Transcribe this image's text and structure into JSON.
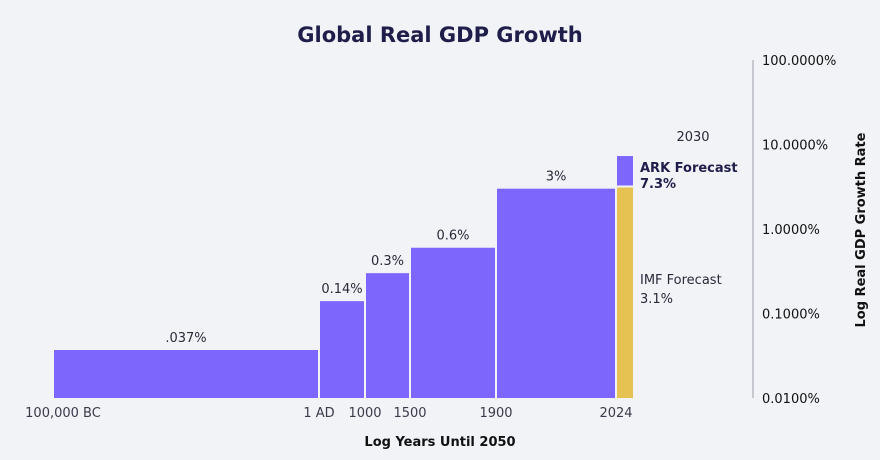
{
  "chart_data": {
    "type": "bar",
    "title": "Global Real GDP Growth",
    "xlabel": "Log Years Until 2050",
    "ylabel": "Log Real GDP Growth Rate",
    "y_scale": "log",
    "ylim": [
      0.01,
      100
    ],
    "y_tick_labels": [
      "100.0000%",
      "10.0000%",
      "1.0000%",
      "0.1000%",
      "0.0100%"
    ],
    "y_tick_values": [
      100,
      10,
      1,
      0.1,
      0.01
    ],
    "x_tick_labels": [
      "100,000 BC",
      "1 AD",
      "1000",
      "1500",
      "1900",
      "2024"
    ],
    "grid": false,
    "series": [
      {
        "periods": [
          {
            "start": "100,000 BC",
            "end": "1 AD",
            "value": 0.037,
            "label": ".037%",
            "color": "#7c66fc"
          },
          {
            "start": "1 AD",
            "end": "1000",
            "value": 0.14,
            "label": "0.14%",
            "color": "#7c66fc"
          },
          {
            "start": "1000",
            "end": "1500",
            "value": 0.3,
            "label": "0.3%",
            "color": "#7c66fc"
          },
          {
            "start": "1500",
            "end": "1900",
            "value": 0.6,
            "label": "0.6%",
            "color": "#7c66fc"
          },
          {
            "start": "1900",
            "end": "2024",
            "value": 3,
            "label": "3%",
            "color": "#7c66fc"
          }
        ]
      }
    ],
    "forecast": {
      "year_label": "2030",
      "ark": {
        "value": 7.3,
        "name": "ARK Forecast",
        "label": "7.3%",
        "color": "#7c66fc"
      },
      "imf": {
        "value": 3.1,
        "name": "IMF Forecast",
        "label": "3.1%",
        "color": "#e6c252"
      }
    },
    "colors": {
      "bar": "#7c66fc",
      "imf": "#e6c252",
      "axis": "#b9b9c4"
    }
  }
}
